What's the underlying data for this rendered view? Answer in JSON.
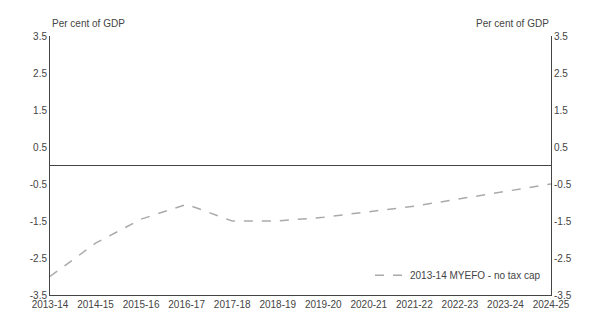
{
  "chart_data": {
    "type": "line",
    "categories": [
      "2013-14",
      "2014-15",
      "2015-16",
      "2016-17",
      "2017-18",
      "2018-19",
      "2019-20",
      "2020-21",
      "2021-22",
      "2022-23",
      "2023-24",
      "2024-25"
    ],
    "series": [
      {
        "name": "2013-14 MYEFO - no tax cap",
        "color": "#aaaaaa",
        "line_style": "dashed",
        "values": [
          -3.0,
          -2.1,
          -1.45,
          -1.05,
          -1.5,
          -1.5,
          -1.4,
          -1.25,
          -1.1,
          -0.9,
          -0.7,
          -0.5
        ]
      }
    ],
    "y_label": "Per cent of GDP",
    "y2_label": "Per cent of GDP",
    "ylim": [
      -3.5,
      3.5
    ],
    "yticks": [
      -3.5,
      -2.5,
      -1.5,
      -0.5,
      0.5,
      1.5,
      2.5,
      3.5
    ],
    "y2lim": [
      -3.5,
      3.5
    ],
    "y2ticks": [
      -3.5,
      -2.5,
      -1.5,
      -0.5,
      0.5,
      1.5,
      2.5,
      3.5
    ],
    "grid": false,
    "legend": "lower right"
  }
}
